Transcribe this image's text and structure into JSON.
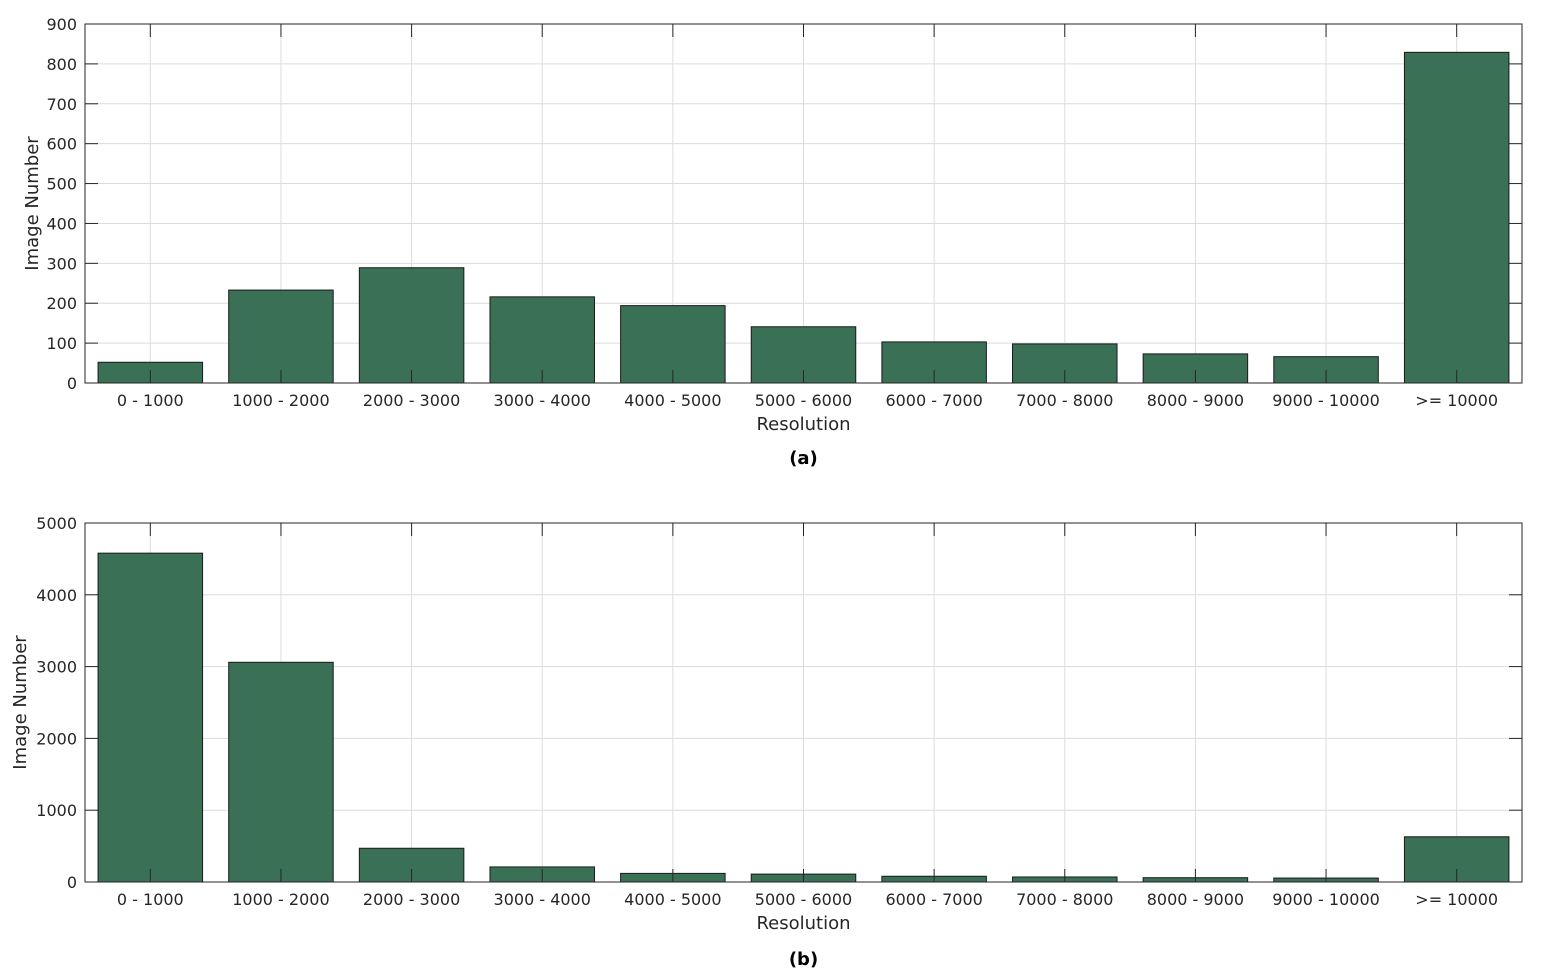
{
  "chart_data": [
    {
      "type": "bar",
      "caption": "(a)",
      "xlabel": "Resolution",
      "ylabel": "Image Number",
      "ylim": [
        0,
        900
      ],
      "yticks": [
        0,
        100,
        200,
        300,
        400,
        500,
        600,
        700,
        800,
        900
      ],
      "categories": [
        "0 - 1000",
        "1000 - 2000",
        "2000 - 3000",
        "3000 - 4000",
        "4000 - 5000",
        "5000 - 6000",
        "6000 - 7000",
        "7000 - 8000",
        "8000 - 9000",
        "9000 - 10000",
        ">= 10000"
      ],
      "values": [
        52,
        233,
        289,
        216,
        194,
        141,
        103,
        98,
        73,
        66,
        829
      ],
      "grid": true,
      "bar_color": "#3a7056"
    },
    {
      "type": "bar",
      "caption": "(b)",
      "xlabel": "Resolution",
      "ylabel": "Image Number",
      "ylim": [
        0,
        5000
      ],
      "yticks": [
        0,
        1000,
        2000,
        3000,
        4000,
        5000
      ],
      "categories": [
        "0 - 1000",
        "1000 - 2000",
        "2000 - 3000",
        "3000 - 4000",
        "4000 - 5000",
        "5000 - 6000",
        "6000 - 7000",
        "7000 - 8000",
        "8000 - 9000",
        "9000 - 10000",
        ">= 10000"
      ],
      "values": [
        4580,
        3060,
        470,
        210,
        120,
        110,
        80,
        70,
        60,
        55,
        630
      ],
      "grid": true,
      "bar_color": "#3a7056"
    }
  ]
}
